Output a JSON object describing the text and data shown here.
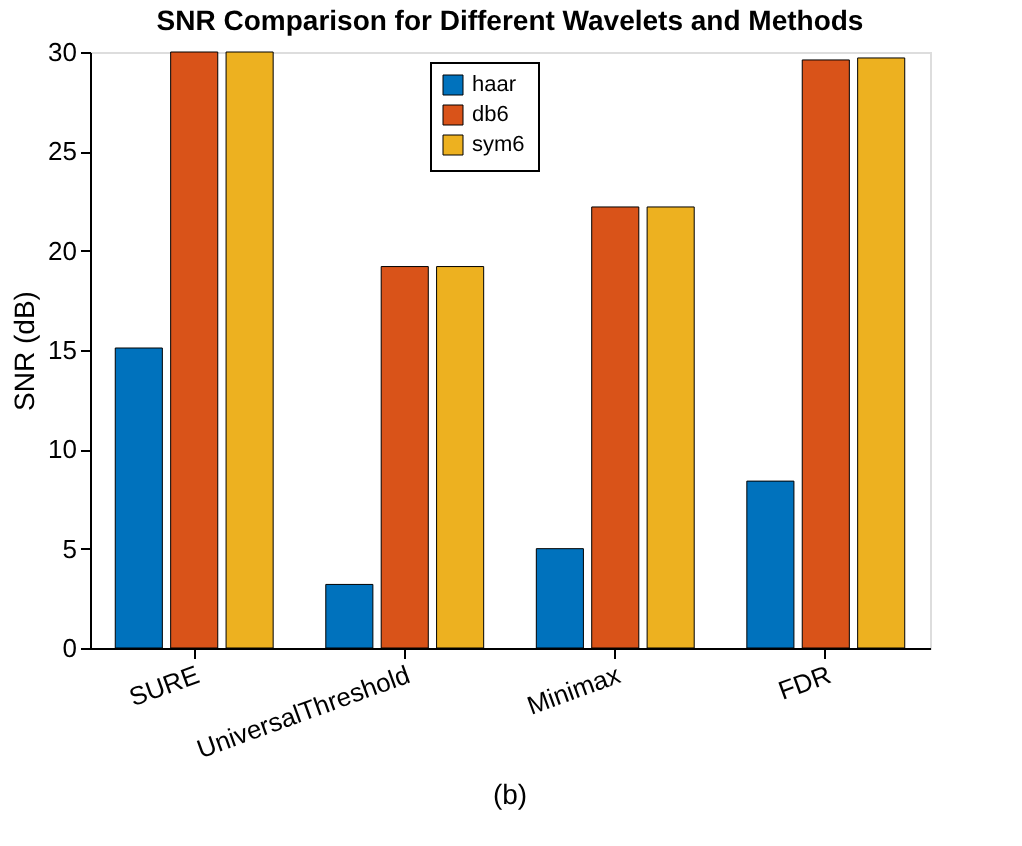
{
  "chart_data": {
    "type": "bar",
    "title": "SNR Comparison for Different Wavelets and Methods",
    "ylabel": "SNR (dB)",
    "categories": [
      "SURE",
      "UniversalThreshold",
      "Minimax",
      "FDR"
    ],
    "series": [
      {
        "name": "haar",
        "color": "#0072bd",
        "values": [
          15.1,
          3.2,
          5.0,
          8.4
        ]
      },
      {
        "name": "db6",
        "color": "#d95319",
        "values": [
          30,
          19.2,
          22.2,
          29.6
        ]
      },
      {
        "name": "sym6",
        "color": "#edb120",
        "values": [
          30,
          19.2,
          22.2,
          29.7
        ]
      }
    ],
    "ylim": [
      0,
      30
    ],
    "yticks": [
      0,
      5,
      10,
      15,
      20,
      25,
      30
    ],
    "grid": false,
    "legend": "top",
    "annotations": [
      "(b)"
    ]
  }
}
